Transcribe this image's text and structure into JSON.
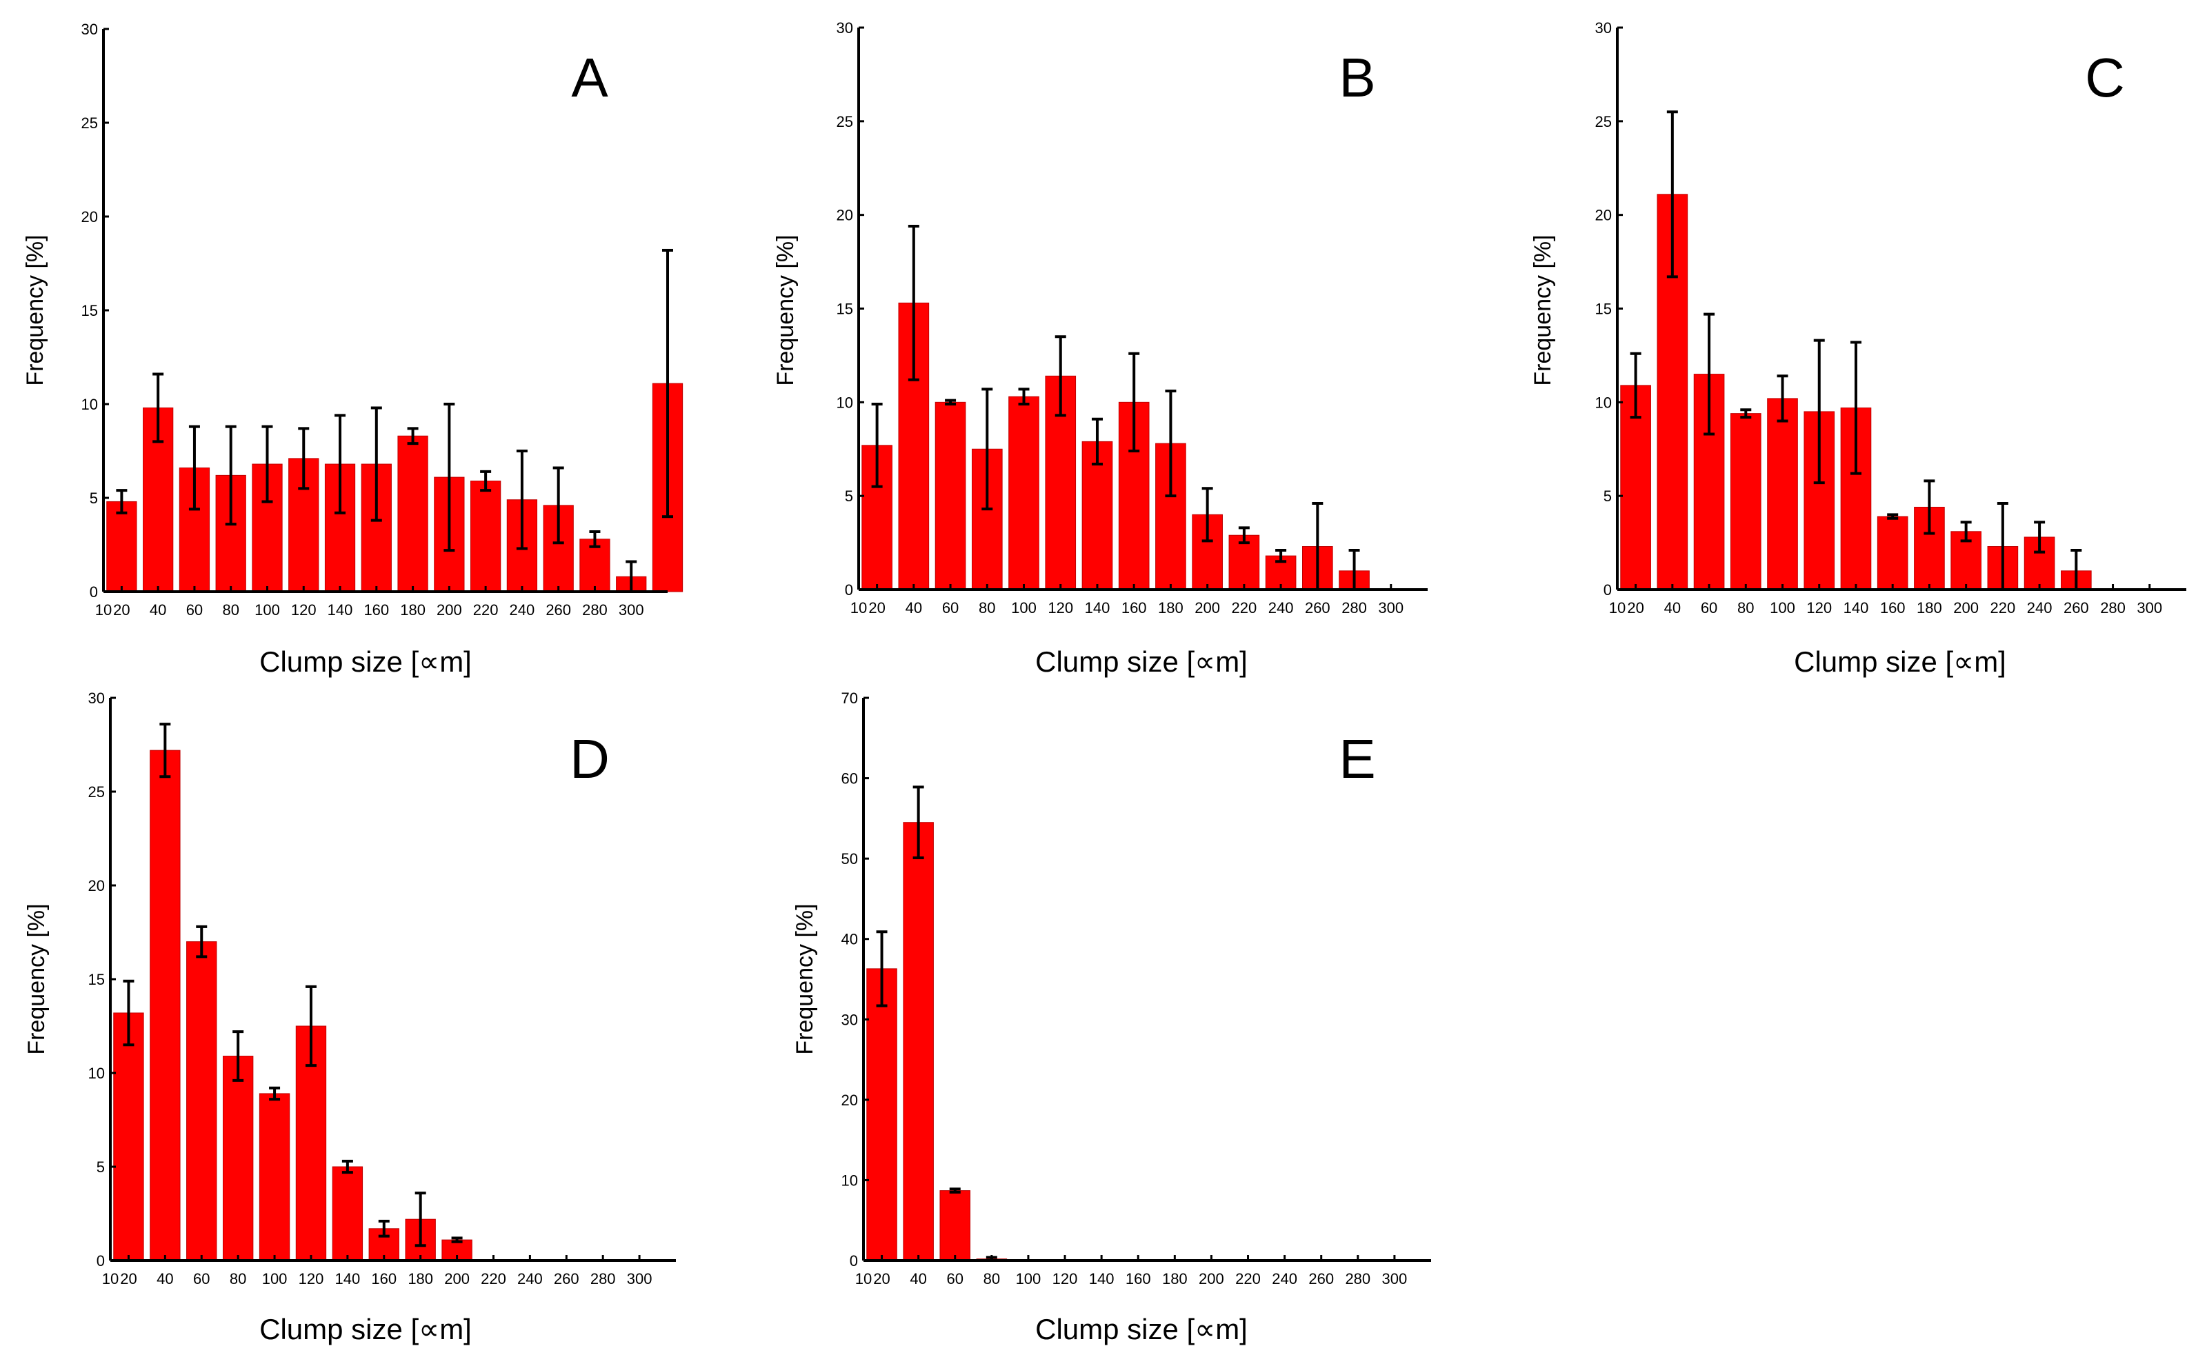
{
  "chart_data": [
    {
      "type": "bar",
      "panel": "A",
      "xlabel": "Clump size [∝m]",
      "ylabel": "Frequency [%]",
      "ylim": [
        0,
        30
      ],
      "yticks": [
        0,
        5,
        10,
        15,
        20,
        25,
        30
      ],
      "xtick_labels": [
        "10",
        "20",
        "40",
        "60",
        "80",
        "100",
        "120",
        "140",
        "160",
        "180",
        "200",
        "220",
        "240",
        "260",
        "280",
        "300"
      ],
      "x": [
        10,
        30,
        50,
        70,
        90,
        110,
        130,
        150,
        170,
        190,
        210,
        230,
        250,
        270,
        290,
        310
      ],
      "values": [
        4.8,
        9.8,
        6.6,
        6.2,
        6.8,
        7.1,
        6.8,
        6.8,
        8.3,
        6.1,
        5.9,
        4.9,
        4.6,
        2.8,
        0.8,
        11.1
      ],
      "errors": [
        0.6,
        1.8,
        2.2,
        2.6,
        2.0,
        1.6,
        2.6,
        3.0,
        0.4,
        3.9,
        0.5,
        2.6,
        2.0,
        0.4,
        0.8,
        7.1
      ],
      "xlim": [
        10,
        320
      ]
    },
    {
      "type": "bar",
      "panel": "B",
      "xlabel": "Clump size [∝m]",
      "ylabel": "Frequency [%]",
      "ylim": [
        0,
        30
      ],
      "yticks": [
        0,
        5,
        10,
        15,
        20,
        25,
        30
      ],
      "xtick_labels": [
        "10",
        "20",
        "40",
        "60",
        "80",
        "100",
        "120",
        "140",
        "160",
        "180",
        "200",
        "220",
        "240",
        "260",
        "280",
        "300"
      ],
      "x": [
        10,
        30,
        50,
        70,
        90,
        110,
        130,
        150,
        170,
        190,
        210,
        230,
        250,
        270
      ],
      "values": [
        7.7,
        15.3,
        10.0,
        7.5,
        10.3,
        11.4,
        7.9,
        10.0,
        7.8,
        4.0,
        2.9,
        1.8,
        2.3,
        1.0
      ],
      "errors": [
        2.2,
        4.1,
        0.1,
        3.2,
        0.4,
        2.1,
        1.2,
        2.6,
        2.8,
        1.4,
        0.4,
        0.3,
        2.3,
        1.1
      ],
      "xlim": [
        10,
        320
      ]
    },
    {
      "type": "bar",
      "panel": "C",
      "xlabel": "Clump size [∝m]",
      "ylabel": "Frequency [%]",
      "ylim": [
        0,
        30
      ],
      "yticks": [
        0,
        5,
        10,
        15,
        20,
        25,
        30
      ],
      "xtick_labels": [
        "10",
        "20",
        "40",
        "60",
        "80",
        "100",
        "120",
        "140",
        "160",
        "180",
        "200",
        "220",
        "240",
        "260",
        "280",
        "300"
      ],
      "x": [
        10,
        30,
        50,
        70,
        90,
        110,
        130,
        150,
        170,
        190,
        210,
        230,
        250
      ],
      "values": [
        10.9,
        21.1,
        11.5,
        9.4,
        10.2,
        9.5,
        9.7,
        3.9,
        4.4,
        3.1,
        2.3,
        2.8,
        1.0
      ],
      "errors": [
        1.7,
        4.4,
        3.2,
        0.2,
        1.2,
        3.8,
        3.5,
        0.1,
        1.4,
        0.5,
        2.3,
        0.8,
        1.1
      ],
      "xlim": [
        10,
        320
      ]
    },
    {
      "type": "bar",
      "panel": "D",
      "xlabel": "Clump size [∝m]",
      "ylabel": "Frequency [%]",
      "ylim": [
        0,
        30
      ],
      "yticks": [
        0,
        5,
        10,
        15,
        20,
        25,
        30
      ],
      "xtick_labels": [
        "10",
        "20",
        "40",
        "60",
        "80",
        "100",
        "120",
        "140",
        "160",
        "180",
        "200",
        "220",
        "240",
        "260",
        "280",
        "300"
      ],
      "x": [
        10,
        30,
        50,
        70,
        90,
        110,
        130,
        150,
        170,
        190
      ],
      "values": [
        13.2,
        27.2,
        17.0,
        10.9,
        8.9,
        12.5,
        5.0,
        1.7,
        2.2,
        1.1
      ],
      "errors": [
        1.7,
        1.4,
        0.8,
        1.3,
        0.3,
        2.1,
        0.3,
        0.4,
        1.4,
        0.1
      ],
      "xlim": [
        10,
        320
      ]
    },
    {
      "type": "bar",
      "panel": "E",
      "xlabel": "Clump size [∝m]",
      "ylabel": "Frequency [%]",
      "ylim": [
        0,
        70
      ],
      "yticks": [
        0,
        10,
        20,
        30,
        40,
        50,
        60,
        70
      ],
      "xtick_labels": [
        "10",
        "20",
        "40",
        "60",
        "80",
        "100",
        "120",
        "140",
        "160",
        "180",
        "200",
        "220",
        "240",
        "260",
        "280",
        "300"
      ],
      "x": [
        10,
        30,
        50,
        70
      ],
      "values": [
        36.3,
        54.5,
        8.7,
        0.2
      ],
      "errors": [
        4.6,
        4.4,
        0.2,
        0.2
      ],
      "xlim": [
        10,
        320
      ]
    }
  ]
}
